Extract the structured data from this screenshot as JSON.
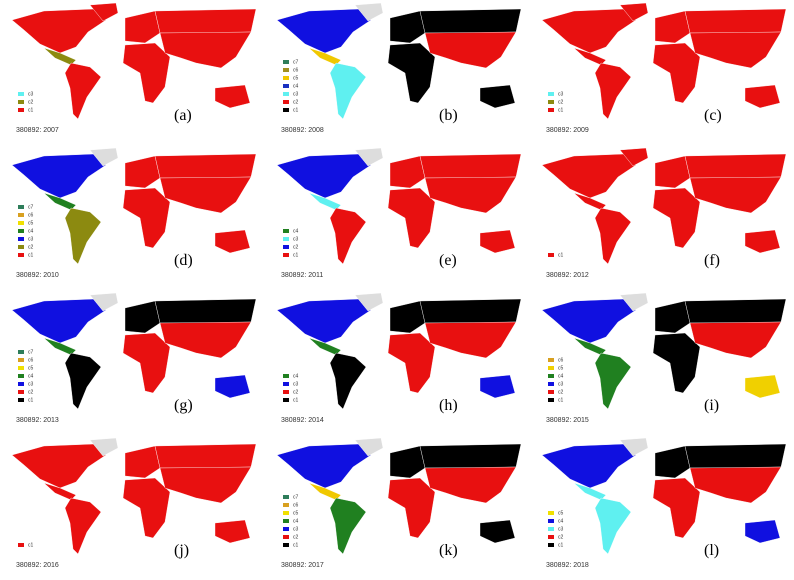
{
  "panels": [
    {
      "label": "(a)",
      "caption": "380892: 2007",
      "legend": [
        {
          "name": "c3",
          "color": "#5ff0f0"
        },
        {
          "name": "c2",
          "color": "#8c8a10"
        },
        {
          "name": "c1",
          "color": "#e81010"
        }
      ],
      "regions": {
        "na": "#e81010",
        "greenland": "#e81010",
        "ca": "#8c8a10",
        "sa": "#e81010",
        "eu": "#e81010",
        "africa": "#e81010",
        "asia_n": "#e81010",
        "asia_s": "#e81010",
        "aus": "#e81010"
      }
    },
    {
      "label": "(b)",
      "caption": "380892: 2008",
      "legend": [
        {
          "name": "c7",
          "color": "#2e7d5a"
        },
        {
          "name": "c6",
          "color": "#a09020"
        },
        {
          "name": "c5",
          "color": "#f0c800"
        },
        {
          "name": "c4",
          "color": "#1a30c0"
        },
        {
          "name": "c3",
          "color": "#5ff0f0"
        },
        {
          "name": "c2",
          "color": "#e81010"
        },
        {
          "name": "c1",
          "color": "#000000"
        }
      ],
      "regions": {
        "na": "#1010e0",
        "greenland": "#dddddd",
        "ca": "#f0c800",
        "sa": "#5ff0f0",
        "eu": "#000000",
        "africa": "#000000",
        "asia_n": "#000000",
        "asia_s": "#e81010",
        "aus": "#000000"
      }
    },
    {
      "label": "(c)",
      "caption": "380892: 2009",
      "legend": [
        {
          "name": "c3",
          "color": "#5ff0f0"
        },
        {
          "name": "c2",
          "color": "#8c8a10"
        },
        {
          "name": "c1",
          "color": "#e81010"
        }
      ],
      "regions": {
        "na": "#e81010",
        "greenland": "#e81010",
        "ca": "#e81010",
        "sa": "#e81010",
        "eu": "#e81010",
        "africa": "#e81010",
        "asia_n": "#e81010",
        "asia_s": "#e81010",
        "aus": "#e81010"
      }
    },
    {
      "label": "(d)",
      "caption": "380892: 2010",
      "legend": [
        {
          "name": "c7",
          "color": "#2e7d5a"
        },
        {
          "name": "c6",
          "color": "#d8a020"
        },
        {
          "name": "c5",
          "color": "#f0e000"
        },
        {
          "name": "c4",
          "color": "#208020"
        },
        {
          "name": "c3",
          "color": "#1010e0"
        },
        {
          "name": "c2",
          "color": "#8c8a10"
        },
        {
          "name": "c1",
          "color": "#e81010"
        }
      ],
      "regions": {
        "na": "#1010e0",
        "greenland": "#dddddd",
        "ca": "#208020",
        "sa": "#8c8a10",
        "eu": "#e81010",
        "africa": "#e81010",
        "asia_n": "#e81010",
        "asia_s": "#e81010",
        "aus": "#e81010"
      }
    },
    {
      "label": "(e)",
      "caption": "380892: 2011",
      "legend": [
        {
          "name": "c4",
          "color": "#208020"
        },
        {
          "name": "c3",
          "color": "#5ff0f0"
        },
        {
          "name": "c2",
          "color": "#1010e0"
        },
        {
          "name": "c1",
          "color": "#e81010"
        }
      ],
      "regions": {
        "na": "#1010e0",
        "greenland": "#dddddd",
        "ca": "#5ff0f0",
        "sa": "#e81010",
        "eu": "#e81010",
        "africa": "#e81010",
        "asia_n": "#e81010",
        "asia_s": "#e81010",
        "aus": "#e81010"
      }
    },
    {
      "label": "(f)",
      "caption": "380892: 2012",
      "legend": [
        {
          "name": "c1",
          "color": "#e81010"
        }
      ],
      "regions": {
        "na": "#e81010",
        "greenland": "#e81010",
        "ca": "#e81010",
        "sa": "#e81010",
        "eu": "#e81010",
        "africa": "#e81010",
        "asia_n": "#e81010",
        "asia_s": "#e81010",
        "aus": "#e81010"
      }
    },
    {
      "label": "(g)",
      "caption": "380892: 2013",
      "legend": [
        {
          "name": "c7",
          "color": "#2e7d5a"
        },
        {
          "name": "c6",
          "color": "#d8a020"
        },
        {
          "name": "c5",
          "color": "#f0e000"
        },
        {
          "name": "c4",
          "color": "#208020"
        },
        {
          "name": "c3",
          "color": "#1010e0"
        },
        {
          "name": "c2",
          "color": "#e81010"
        },
        {
          "name": "c1",
          "color": "#000000"
        }
      ],
      "regions": {
        "na": "#1010e0",
        "greenland": "#dddddd",
        "ca": "#208020",
        "sa": "#000000",
        "eu": "#000000",
        "africa": "#e81010",
        "asia_n": "#000000",
        "asia_s": "#e81010",
        "aus": "#1010e0"
      }
    },
    {
      "label": "(h)",
      "caption": "380892: 2014",
      "legend": [
        {
          "name": "c4",
          "color": "#208020"
        },
        {
          "name": "c3",
          "color": "#1010e0"
        },
        {
          "name": "c2",
          "color": "#e81010"
        },
        {
          "name": "c1",
          "color": "#000000"
        }
      ],
      "regions": {
        "na": "#1010e0",
        "greenland": "#dddddd",
        "ca": "#208020",
        "sa": "#000000",
        "eu": "#000000",
        "africa": "#e81010",
        "asia_n": "#000000",
        "asia_s": "#e81010",
        "aus": "#1010e0"
      }
    },
    {
      "label": "(i)",
      "caption": "380892: 2015",
      "legend": [
        {
          "name": "c6",
          "color": "#d8a020"
        },
        {
          "name": "c5",
          "color": "#f0d000"
        },
        {
          "name": "c4",
          "color": "#208020"
        },
        {
          "name": "c3",
          "color": "#1010e0"
        },
        {
          "name": "c2",
          "color": "#e81010"
        },
        {
          "name": "c1",
          "color": "#000000"
        }
      ],
      "regions": {
        "na": "#1010e0",
        "greenland": "#dddddd",
        "ca": "#208020",
        "sa": "#208020",
        "eu": "#000000",
        "africa": "#000000",
        "asia_n": "#000000",
        "asia_s": "#e81010",
        "aus": "#f0d000"
      }
    },
    {
      "label": "(j)",
      "caption": "380892: 2016",
      "legend": [
        {
          "name": "c1",
          "color": "#e81010"
        }
      ],
      "regions": {
        "na": "#e81010",
        "greenland": "#dddddd",
        "ca": "#e81010",
        "sa": "#e81010",
        "eu": "#e81010",
        "africa": "#e81010",
        "asia_n": "#e81010",
        "asia_s": "#e81010",
        "aus": "#e81010"
      }
    },
    {
      "label": "(k)",
      "caption": "380892: 2017",
      "legend": [
        {
          "name": "c7",
          "color": "#2e7d5a"
        },
        {
          "name": "c6",
          "color": "#d8a020"
        },
        {
          "name": "c5",
          "color": "#f0e000"
        },
        {
          "name": "c4",
          "color": "#208020"
        },
        {
          "name": "c3",
          "color": "#1010e0"
        },
        {
          "name": "c2",
          "color": "#e81010"
        },
        {
          "name": "c1",
          "color": "#000000"
        }
      ],
      "regions": {
        "na": "#1010e0",
        "greenland": "#dddddd",
        "ca": "#f0c800",
        "sa": "#208020",
        "eu": "#000000",
        "africa": "#e81010",
        "asia_n": "#000000",
        "asia_s": "#e81010",
        "aus": "#000000"
      }
    },
    {
      "label": "(l)",
      "caption": "380892: 2018",
      "legend": [
        {
          "name": "c5",
          "color": "#f0e000"
        },
        {
          "name": "c4",
          "color": "#1010e0"
        },
        {
          "name": "c3",
          "color": "#5ff0f0"
        },
        {
          "name": "c2",
          "color": "#e81010"
        },
        {
          "name": "c1",
          "color": "#000000"
        }
      ],
      "regions": {
        "na": "#1010e0",
        "greenland": "#dddddd",
        "ca": "#5ff0f0",
        "sa": "#5ff0f0",
        "eu": "#000000",
        "africa": "#e81010",
        "asia_n": "#000000",
        "asia_s": "#e81010",
        "aus": "#1010e0"
      }
    }
  ]
}
